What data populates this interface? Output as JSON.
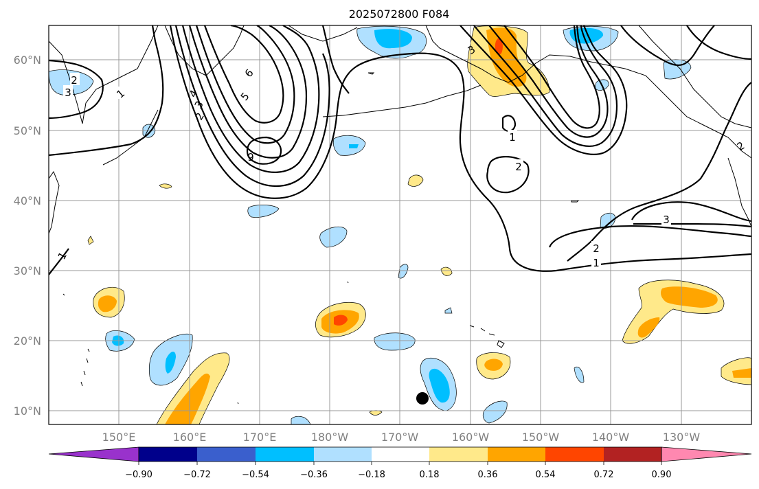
{
  "title": "2025072800 F084",
  "lat_labels": [
    "60°N",
    "50°N",
    "40°N",
    "30°N",
    "20°N",
    "10°N"
  ],
  "lon_labels": [
    "150°E",
    "160°E",
    "170°E",
    "180°W",
    "170°W",
    "160°W",
    "150°W",
    "140°W",
    "130°W"
  ],
  "contour_labels": [
    "2",
    "1",
    "3",
    "4",
    "3",
    "2",
    "6",
    "5",
    "6",
    "3",
    "1",
    "2",
    "2",
    "3",
    "1",
    "2",
    "1"
  ],
  "colorbar": {
    "ticks": [
      "−0.90",
      "−0.72",
      "−0.54",
      "−0.36",
      "−0.18",
      "0.18",
      "0.36",
      "0.54",
      "0.72",
      "0.90"
    ],
    "colors": [
      "#9932cc",
      "#00008b",
      "#3a5fcd",
      "#00bfff",
      "#b0e0ff",
      "#ffffff",
      "#ffe98a",
      "#ffa500",
      "#ff4500",
      "#b22222",
      "#ff88b0"
    ]
  },
  "shading_colors": {
    "light_blue": "#b0e0ff",
    "blue": "#00bfff",
    "light_yellow": "#ffe98a",
    "orange": "#ffa500",
    "red_orange": "#ff4500"
  }
}
